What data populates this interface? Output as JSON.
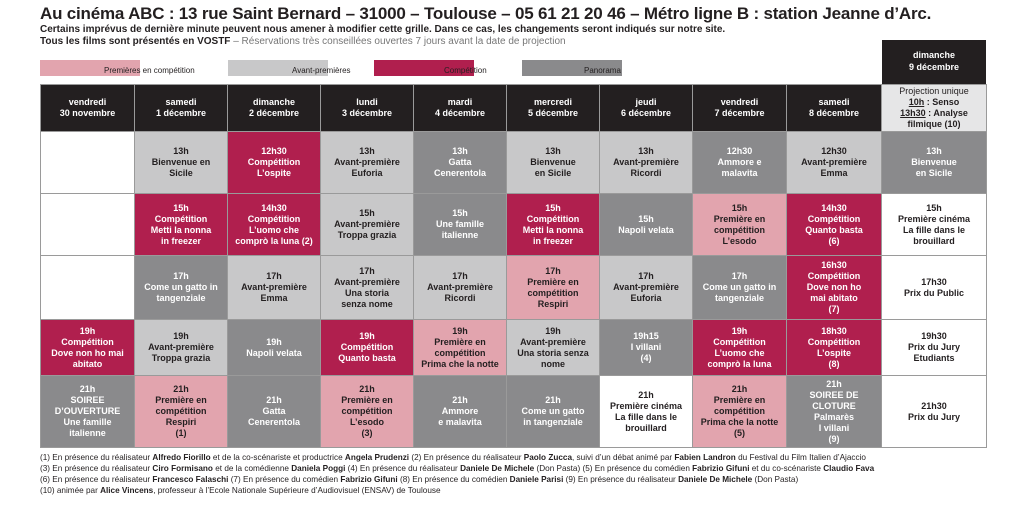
{
  "header": {
    "title": "Au cinéma ABC : 13 rue Saint Bernard – 31000 – Toulouse – 05 61 21 20 46 – Métro ligne B : station Jeanne d’Arc.",
    "line2": "Certains imprévus de dernière minute peuvent nous amener à modifier cette grille. Dans ce cas, les changements seront indiqués sur notre site.",
    "line3_bold": "Tous les films sont présentés en VOSTF",
    "line3_gray": " – Réservations très conseillées ouvertes 7 jours avant la date de projection"
  },
  "legend": [
    {
      "label": "Premières en compétition",
      "color": "#e2a4ae"
    },
    {
      "label": "Avant-premières",
      "color": "#c8c8c9"
    },
    {
      "label": "Compétition",
      "color": "#b01f4e"
    },
    {
      "label": "Panorama",
      "color": "#8a8a8c"
    }
  ],
  "sunday_header": {
    "l1": "dimanche",
    "l2": "9 décembre"
  },
  "days": [
    {
      "l1": "vendredi",
      "l2": "30 novembre"
    },
    {
      "l1": "samedi",
      "l2": "1 décembre"
    },
    {
      "l1": "dimanche",
      "l2": "2 décembre"
    },
    {
      "l1": "lundi",
      "l2": "3 décembre"
    },
    {
      "l1": "mardi",
      "l2": "4 décembre"
    },
    {
      "l1": "mercredi",
      "l2": "5 décembre"
    },
    {
      "l1": "jeudi",
      "l2": "6 décembre"
    },
    {
      "l1": "vendredi",
      "l2": "7 décembre"
    },
    {
      "l1": "samedi",
      "l2": "8 décembre"
    }
  ],
  "last_header": {
    "l1": "Projection unique",
    "t1": "10h",
    "r1": " : Senso",
    "t2": "13h30",
    "r2": " : Analyse",
    "l4": "filmique (10)"
  },
  "rows": [
    [
      {
        "type": "white",
        "lines": []
      },
      {
        "type": "light",
        "lines": [
          "13h",
          "Bienvenue en",
          "Sicile"
        ]
      },
      {
        "type": "red",
        "lines": [
          "12h30",
          "Compétition",
          "L’ospite"
        ]
      },
      {
        "type": "light",
        "lines": [
          "13h",
          "Avant-première",
          "Euforia"
        ]
      },
      {
        "type": "gray",
        "lines": [
          "13h",
          "Gatta",
          "Cenerentola"
        ]
      },
      {
        "type": "light",
        "lines": [
          "13h",
          "Bienvenue",
          "en Sicile"
        ]
      },
      {
        "type": "light",
        "lines": [
          "13h",
          "Avant-première",
          "Ricordi"
        ]
      },
      {
        "type": "gray",
        "lines": [
          "12h30",
          "Ammore e",
          "malavita"
        ]
      },
      {
        "type": "light",
        "lines": [
          "12h30",
          "Avant-première",
          "Emma"
        ]
      },
      {
        "type": "gray",
        "lines": [
          "13h",
          "Bienvenue",
          "en Sicile"
        ]
      }
    ],
    [
      {
        "type": "white",
        "lines": []
      },
      {
        "type": "red",
        "lines": [
          "15h",
          "Compétition",
          "Metti la nonna",
          "in freezer"
        ]
      },
      {
        "type": "red",
        "lines": [
          "14h30",
          "Compétition",
          "L’uomo che",
          "comprò la luna (2)"
        ]
      },
      {
        "type": "light",
        "lines": [
          "15h",
          "Avant-première",
          "Troppa grazia"
        ]
      },
      {
        "type": "gray",
        "lines": [
          "15h",
          "Une famille",
          "italienne"
        ]
      },
      {
        "type": "red",
        "lines": [
          "15h",
          "Compétition",
          "Metti la nonna",
          "in freezer"
        ]
      },
      {
        "type": "gray",
        "lines": [
          "15h",
          "Napoli velata"
        ]
      },
      {
        "type": "pink",
        "lines": [
          "15h",
          "Première en",
          "compétition",
          "L’esodo"
        ]
      },
      {
        "type": "red",
        "lines": [
          "14h30",
          "Compétition",
          "Quanto basta",
          "(6)"
        ]
      },
      {
        "type": "white",
        "lines": [
          "15h",
          "Première cinéma",
          "La fille dans le",
          "brouillard"
        ]
      }
    ],
    [
      {
        "type": "white",
        "lines": []
      },
      {
        "type": "gray",
        "lines": [
          "17h",
          "Come un gatto in",
          "tangenziale"
        ]
      },
      {
        "type": "light",
        "lines": [
          "17h",
          "Avant-première",
          "Emma"
        ]
      },
      {
        "type": "light",
        "lines": [
          "17h",
          "Avant-première",
          "Una storia",
          "senza nome"
        ]
      },
      {
        "type": "light",
        "lines": [
          "17h",
          "Avant-première",
          "Ricordi"
        ]
      },
      {
        "type": "pink",
        "lines": [
          "17h",
          "Première en",
          "compétition",
          "Respiri"
        ]
      },
      {
        "type": "light",
        "lines": [
          "17h",
          "Avant-première",
          "Euforia"
        ]
      },
      {
        "type": "gray",
        "lines": [
          "17h",
          "Come un gatto in",
          "tangenziale"
        ]
      },
      {
        "type": "red",
        "lines": [
          "16h30",
          "Compétition",
          "Dove non ho",
          "mai abitato",
          "(7)"
        ]
      },
      {
        "type": "white",
        "lines": [
          "17h30",
          "Prix du Public"
        ]
      }
    ],
    [
      {
        "type": "red",
        "lines": [
          "19h",
          "Compétition",
          "Dove non ho mai",
          "abitato"
        ]
      },
      {
        "type": "light",
        "lines": [
          "19h",
          "Avant-première",
          "Troppa grazia"
        ]
      },
      {
        "type": "gray",
        "lines": [
          "19h",
          "Napoli velata"
        ]
      },
      {
        "type": "red",
        "lines": [
          "19h",
          "Compétition",
          "Quanto basta"
        ]
      },
      {
        "type": "pink",
        "lines": [
          "19h",
          "Première en",
          "compétition",
          "Prima che la notte"
        ]
      },
      {
        "type": "light",
        "lines": [
          "19h",
          "Avant-première",
          "Una storia senza",
          "nome"
        ]
      },
      {
        "type": "gray",
        "lines": [
          "19h15",
          "I villani",
          "(4)"
        ]
      },
      {
        "type": "red",
        "lines": [
          "19h",
          "Compétition",
          "L’uomo che",
          "comprò la luna"
        ]
      },
      {
        "type": "red",
        "lines": [
          "18h30",
          "Compétition",
          "L’ospite",
          "(8)"
        ]
      },
      {
        "type": "white",
        "lines": [
          "19h30",
          "Prix du Jury",
          "Etudiants"
        ]
      }
    ],
    [
      {
        "type": "gray",
        "lines": [
          "21h",
          "SOIREE",
          "D’OUVERTURE",
          "Une famille",
          "italienne"
        ]
      },
      {
        "type": "pink",
        "lines": [
          "21h",
          "Première en",
          "compétition",
          "Respiri",
          "(1)"
        ]
      },
      {
        "type": "gray",
        "lines": [
          "21h",
          "Gatta",
          "Cenerentola"
        ]
      },
      {
        "type": "pink",
        "lines": [
          "21h",
          "Première en",
          "compétition",
          "L’esodo",
          "(3)"
        ]
      },
      {
        "type": "gray",
        "lines": [
          "21h",
          "Ammore",
          "e malavita"
        ]
      },
      {
        "type": "gray",
        "lines": [
          "21h",
          "Come un gatto",
          "in tangenziale"
        ]
      },
      {
        "type": "white",
        "lines": [
          "21h",
          "Première cinéma",
          "La fille dans le",
          "brouillard"
        ]
      },
      {
        "type": "pink",
        "lines": [
          "21h",
          "Première en",
          "compétition",
          "Prima che la notte",
          "(5)"
        ]
      },
      {
        "type": "gray",
        "lines": [
          "21h",
          "SOIREE DE CLOTURE",
          "Palmarès",
          "I villani",
          "(9)"
        ]
      },
      {
        "type": "white",
        "lines": [
          "21h30",
          "Prix du Jury"
        ]
      }
    ]
  ],
  "footnotes": [
    [
      [
        "(1) En présence du réalisateur ",
        0
      ],
      [
        "Alfredo Fiorillo",
        1
      ],
      [
        " et de la co-scénariste et productrice ",
        0
      ],
      [
        "Angela Prudenzi",
        1
      ],
      [
        " (2) En présence du réalisateur ",
        0
      ],
      [
        "Paolo Zucca",
        1
      ],
      [
        ", suivi d’un débat animé par ",
        0
      ],
      [
        "Fabien Landron",
        1
      ],
      [
        " du Festival du Film Italien d’Ajaccio",
        0
      ]
    ],
    [
      [
        "(3) En présence du réalisateur ",
        0
      ],
      [
        "Ciro Formisano",
        1
      ],
      [
        " et de la comédienne ",
        0
      ],
      [
        "Daniela Poggi",
        1
      ],
      [
        " (4) En présence du réalisateur ",
        0
      ],
      [
        "Daniele De Michele",
        1
      ],
      [
        " (Don Pasta) (5) En présence du comédien ",
        0
      ],
      [
        "Fabrizio Gifuni",
        1
      ],
      [
        " et du co-scénariste ",
        0
      ],
      [
        "Claudio Fava",
        1
      ]
    ],
    [
      [
        "(6) En présence du réalisateur ",
        0
      ],
      [
        "Francesco Falaschi",
        1
      ],
      [
        " (7) En présence du comédien ",
        0
      ],
      [
        "Fabrizio Gifuni",
        1
      ],
      [
        " (8) En présence du comédien ",
        0
      ],
      [
        "Daniele Parisi",
        1
      ],
      [
        " (9) En présence du réalisateur ",
        0
      ],
      [
        "Daniele De Michele",
        1
      ],
      [
        " (Don Pasta)",
        0
      ]
    ],
    [
      [
        "(10) animée par ",
        0
      ],
      [
        "Alice Vincens",
        1
      ],
      [
        ", professeur à l’Ecole Nationale Supérieure d’Audiovisuel (ENSAV) de Toulouse",
        0
      ]
    ]
  ]
}
